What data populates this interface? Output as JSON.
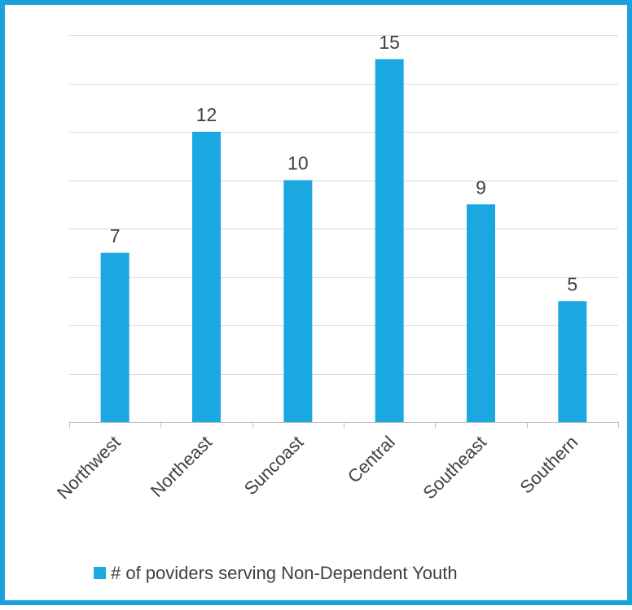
{
  "chart_data": {
    "type": "bar",
    "categories": [
      "Northwest",
      "Northeast",
      "Suncoast",
      "Central",
      "Southeast",
      "Southern"
    ],
    "series": [
      {
        "name": "# of poviders serving Non-Dependent Youth",
        "values": [
          7,
          12,
          10,
          15,
          9,
          5
        ],
        "color": "#1BA8E0"
      }
    ],
    "data_labels": [
      "7",
      "12",
      "10",
      "15",
      "9",
      "5"
    ],
    "ylim": [
      0,
      16
    ],
    "grid": true,
    "y_axis_labels_shown": false,
    "legend_position": "bottom",
    "border_color": "#1BA1DC"
  }
}
